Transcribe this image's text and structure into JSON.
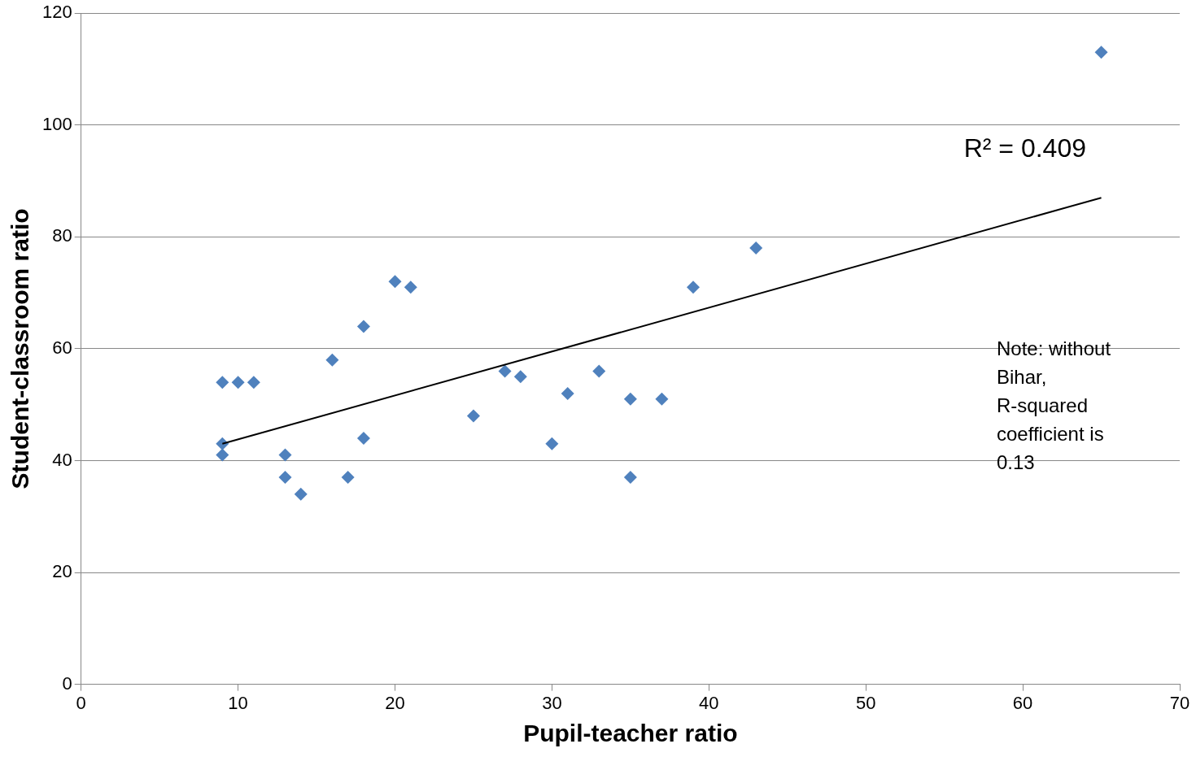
{
  "chart_data": {
    "type": "scatter",
    "xlabel": "Pupil-teacher ratio",
    "ylabel": "Student-classroom ratio",
    "xlim": [
      0,
      70
    ],
    "xticks": [
      0,
      10,
      20,
      30,
      40,
      50,
      60,
      70
    ],
    "ylim": [
      0,
      120
    ],
    "yticks": [
      0,
      20,
      40,
      60,
      80,
      100,
      120
    ],
    "grid": "y",
    "legend": false,
    "marker": "diamond",
    "series": [
      {
        "type": "scatter",
        "color": "#4f81bd",
        "x": [
          9,
          10,
          11,
          9,
          9,
          13,
          13,
          14,
          16,
          17,
          18,
          18,
          20,
          21,
          25,
          27,
          28,
          30,
          31,
          33,
          35,
          35,
          37,
          39,
          43,
          65
        ],
        "values": [
          54,
          54,
          54,
          43,
          41,
          41,
          37,
          34,
          58,
          37,
          64,
          44,
          72,
          71,
          48,
          56,
          55,
          43,
          52,
          56,
          51,
          37,
          51,
          71,
          78,
          113
        ]
      },
      {
        "type": "line",
        "color": "#000000",
        "x": [
          9,
          65
        ],
        "values": [
          43,
          87
        ],
        "marker": "none"
      }
    ],
    "annotations": [
      "R² = 0.409",
      "Note: without Bihar, R-squared coefficient is 0.13"
    ]
  }
}
